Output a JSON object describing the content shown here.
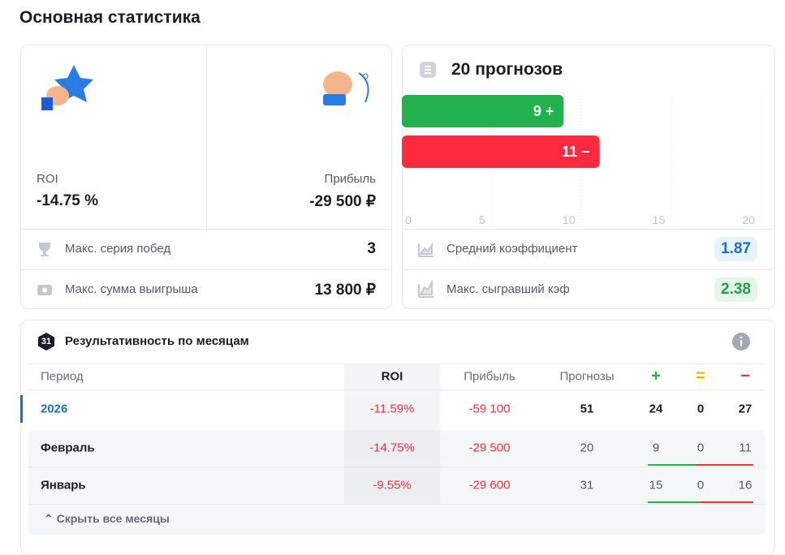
{
  "header": {
    "title": "Основная статистика"
  },
  "summary": {
    "roi_label": "ROI",
    "roi_value": "-14.75 %",
    "profit_label": "Прибыль",
    "profit_value": "-29 500 ₽",
    "rows": [
      {
        "label": "Макс. серия побед",
        "value": "3"
      },
      {
        "label": "Макс. сумма выигрыша",
        "value": "13 800 ₽"
      }
    ]
  },
  "chart_data": {
    "type": "bar",
    "orientation": "horizontal",
    "title": "20 прогнозов",
    "categories": [
      null,
      null
    ],
    "values": [
      9,
      11
    ],
    "value_labels": [
      "9 +",
      "11 −"
    ],
    "colors": [
      "#22b14c",
      "#ff2a3d"
    ],
    "xlim": [
      0,
      20
    ],
    "xticks": [
      0,
      5,
      10,
      15,
      20
    ],
    "grid": true
  },
  "odds": {
    "rows": [
      {
        "label": "Средний коэффициент",
        "value": "1.87"
      },
      {
        "label": "Макс. сыгравший кэф",
        "value": "2.38"
      }
    ]
  },
  "monthly": {
    "icon": "31",
    "title": "Результативность по месяцам",
    "columns": [
      "Период",
      "ROI",
      "Прибыль",
      "Прогнозы",
      "+",
      "=",
      "−"
    ],
    "rows": [
      [
        "2026",
        "-11.59%",
        "-59 100",
        "51",
        "24",
        "0",
        "27"
      ],
      [
        "Февраль",
        "-14.75%",
        "-29 500",
        "20",
        "9",
        "0",
        "11"
      ],
      [
        "Январь",
        "-9.55%",
        "-29 600",
        "31",
        "15",
        "0",
        "16"
      ]
    ],
    "toggle": "Скрыть все месяцы"
  }
}
